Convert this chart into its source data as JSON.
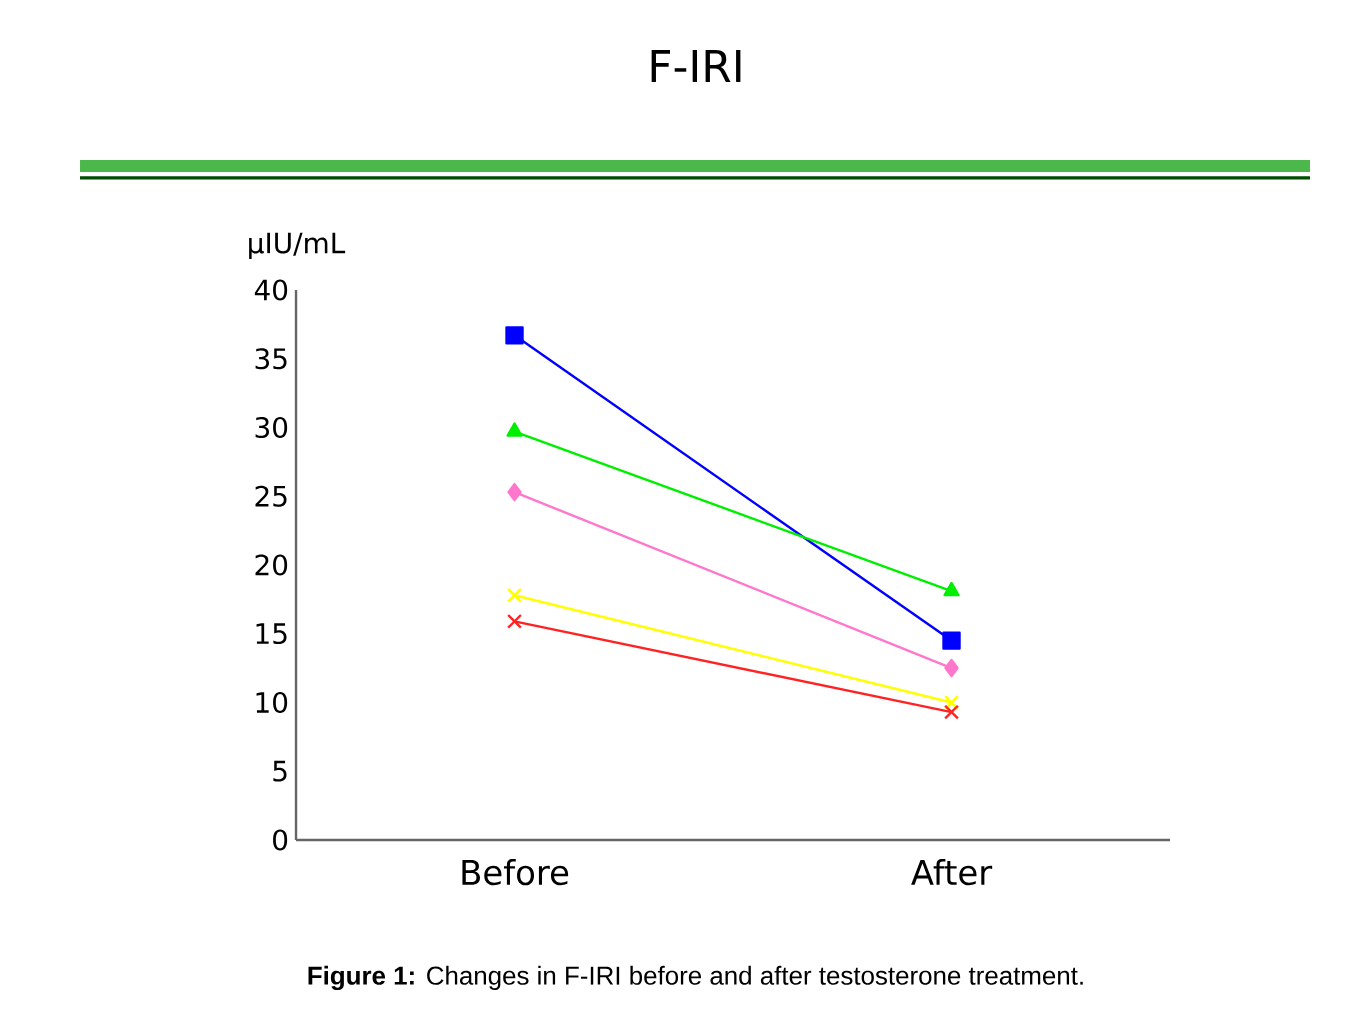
{
  "chart_data": {
    "type": "line",
    "title": "F-IRI",
    "ylabel": "µIU/mL",
    "categories": [
      "Before",
      "After"
    ],
    "series": [
      {
        "color": "#0000ff",
        "values": [
          36.7,
          14.5
        ],
        "marker": "square"
      },
      {
        "color": "#00ee00",
        "values": [
          29.7,
          18.1
        ],
        "marker": "triangle"
      },
      {
        "color": "#ff77cc",
        "values": [
          25.3,
          12.5
        ],
        "marker": "diamond"
      },
      {
        "color": "#ffff00",
        "values": [
          17.8,
          10.0
        ],
        "marker": "cross"
      },
      {
        "color": "#ff2222",
        "values": [
          15.9,
          9.3
        ],
        "marker": "cross"
      }
    ],
    "ylim": [
      0,
      40
    ],
    "yticks": [
      0,
      5,
      10,
      15,
      20,
      25,
      30,
      35,
      40
    ],
    "grid": false,
    "annotations": [
      "**Figure 1:** Changes in F-IRI before and after testosterone treatment."
    ]
  }
}
